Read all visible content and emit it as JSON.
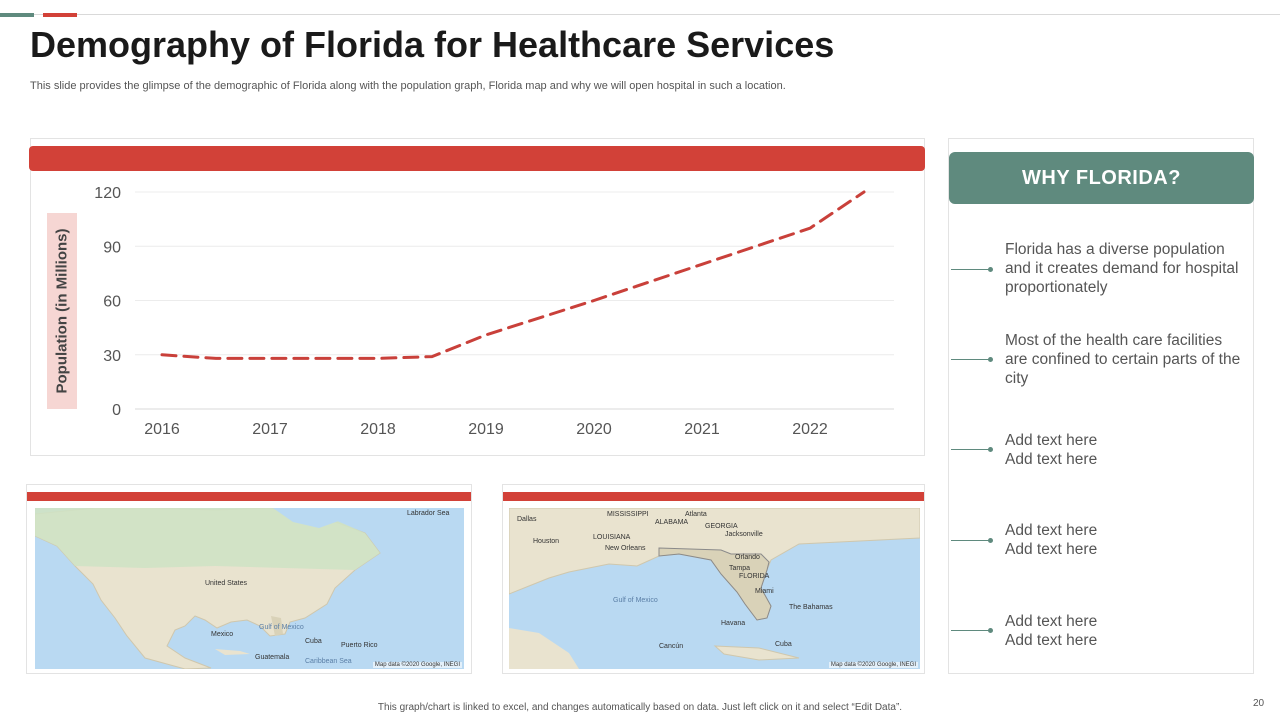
{
  "slide": {
    "title": "Demography of Florida for Healthcare Services",
    "subtitle": "This slide provides the glimpse of the demographic of Florida along with the population graph, Florida map and why we will open hospital in such a location.",
    "footer_note": "This graph/chart is linked to excel, and changes automatically based on data. Just left click on it and select “Edit Data”.",
    "page_number": "20"
  },
  "colors": {
    "accent_red": "#d24138",
    "accent_green": "#5f8a7e",
    "ylabel_bg": "#f6d6d3"
  },
  "chart_data": {
    "type": "line",
    "title": "",
    "xlabel": "",
    "ylabel": "Population (in Millions)",
    "categories": [
      "2016",
      "2017",
      "2018",
      "2019",
      "2020",
      "2021",
      "2022"
    ],
    "y_ticks": [
      "0",
      "30",
      "60",
      "90",
      "120"
    ],
    "ylim": [
      0,
      120
    ],
    "x_range": [
      2016,
      2022.5
    ],
    "grid": true,
    "series": [
      {
        "name": "Population",
        "style": "dashed",
        "color": "#c9403a",
        "x": [
          2016,
          2016.5,
          2017,
          2018,
          2018.5,
          2019,
          2020,
          2021,
          2022,
          2022.5
        ],
        "y": [
          30,
          28,
          28,
          28,
          29,
          41,
          60,
          80,
          100,
          120
        ]
      }
    ]
  },
  "maps": {
    "north_america": {
      "labels": {
        "united_states": "United States",
        "gulf": "Gulf of Mexico",
        "mexico": "Mexico",
        "cuba": "Cuba",
        "puerto_rico": "Puerto Rico",
        "guatemala": "Guatemala",
        "caribbean": "Caribbean Sea",
        "labrador": "Labrador Sea"
      },
      "credit": "Map data ©2020 Google, INEGI"
    },
    "florida": {
      "labels": {
        "dallas": "Dallas",
        "mississippi": "MISSISSIPPI",
        "alabama": "ALABAMA",
        "georgia": "GEORGIA",
        "atlanta": "Atlanta",
        "louisiana": "LOUISIANA",
        "houston": "Houston",
        "new_orleans": "New Orleans",
        "jacksonville": "Jacksonville",
        "orlando": "Orlando",
        "tampa": "Tampa",
        "florida": "FLORIDA",
        "miami": "Miami",
        "gulf": "Gulf of Mexico",
        "bahamas": "The Bahamas",
        "havana": "Havana",
        "cuba": "Cuba",
        "cancun": "Cancún"
      },
      "credit": "Map data ©2020 Google, INEGI"
    }
  },
  "why_florida": {
    "heading": "WHY FLORIDA?",
    "items": [
      "Florida has a diverse population and it creates demand for hospital proportionately",
      "Most of the health care facilities are confined to certain parts of the city",
      "Add text here\nAdd text here",
      "Add text here\nAdd text here",
      "Add text here\nAdd text here"
    ]
  }
}
